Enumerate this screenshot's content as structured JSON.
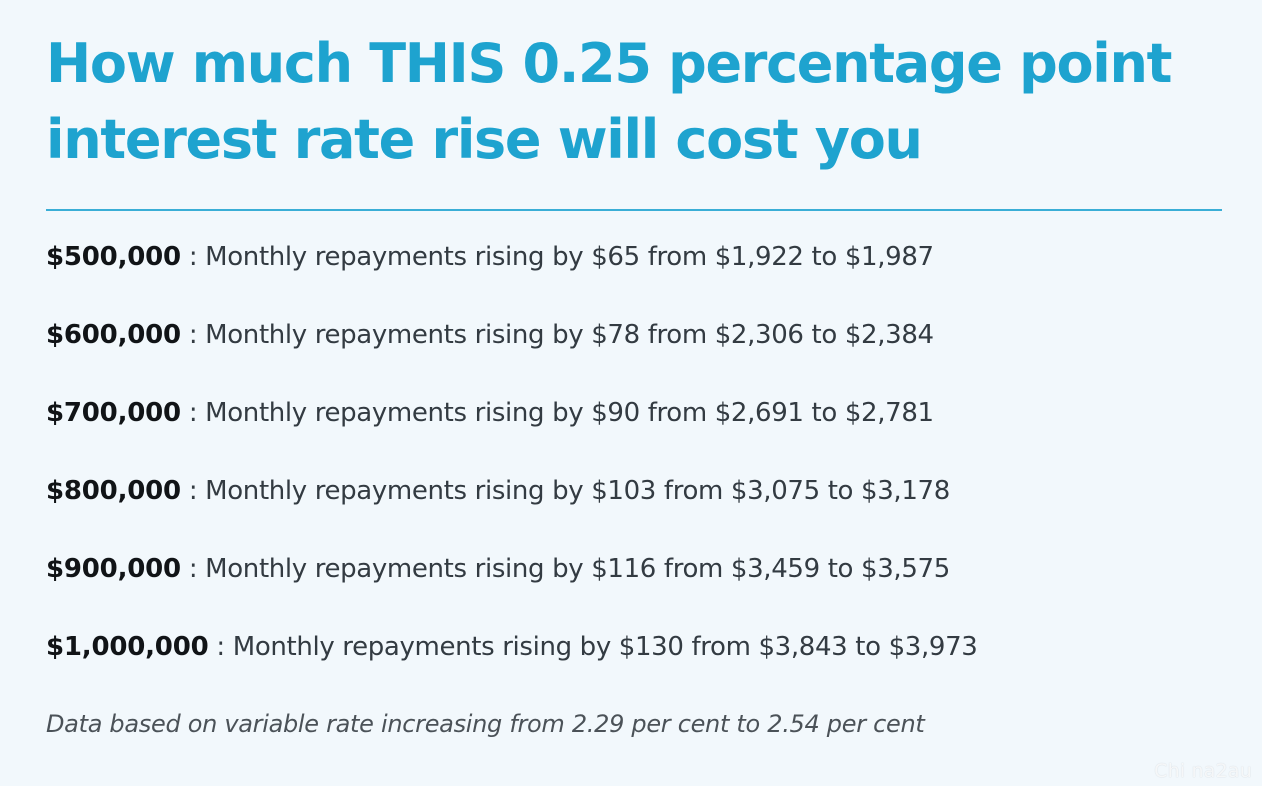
{
  "title": "How much THIS 0.25 percentage point interest rate rise will cost you",
  "rows": [
    {
      "amount": "$500,000",
      "separator": " : ",
      "text": "Monthly repayments rising by $65 from $1,922 to $1,987"
    },
    {
      "amount": "$600,000",
      "separator": " : ",
      "text": "Monthly repayments rising by $78 from $2,306 to $2,384"
    },
    {
      "amount": "$700,000",
      "separator": " : ",
      "text": "Monthly repayments rising by $90 from $2,691 to $2,781"
    },
    {
      "amount": "$800,000",
      "separator": " : ",
      "text": "Monthly repayments rising by $103 from $3,075 to $3,178"
    },
    {
      "amount": "$900,000",
      "separator": " : ",
      "text": "Monthly repayments rising by $116 from $3,459 to $3,575"
    },
    {
      "amount": "$1,000,000",
      "separator": " : ",
      "text": "Monthly repayments rising by $130 from $3,843 to $3,973"
    }
  ],
  "note": "Data based on variable rate increasing from 2.29 per cent to 2.54 per cent",
  "watermark": "Chi na2au",
  "colors": {
    "title": "#1ea3cf",
    "divider": "#3aaed6",
    "background": "#f2f8fc",
    "amount": "#111417",
    "body_text": "#333b42"
  }
}
